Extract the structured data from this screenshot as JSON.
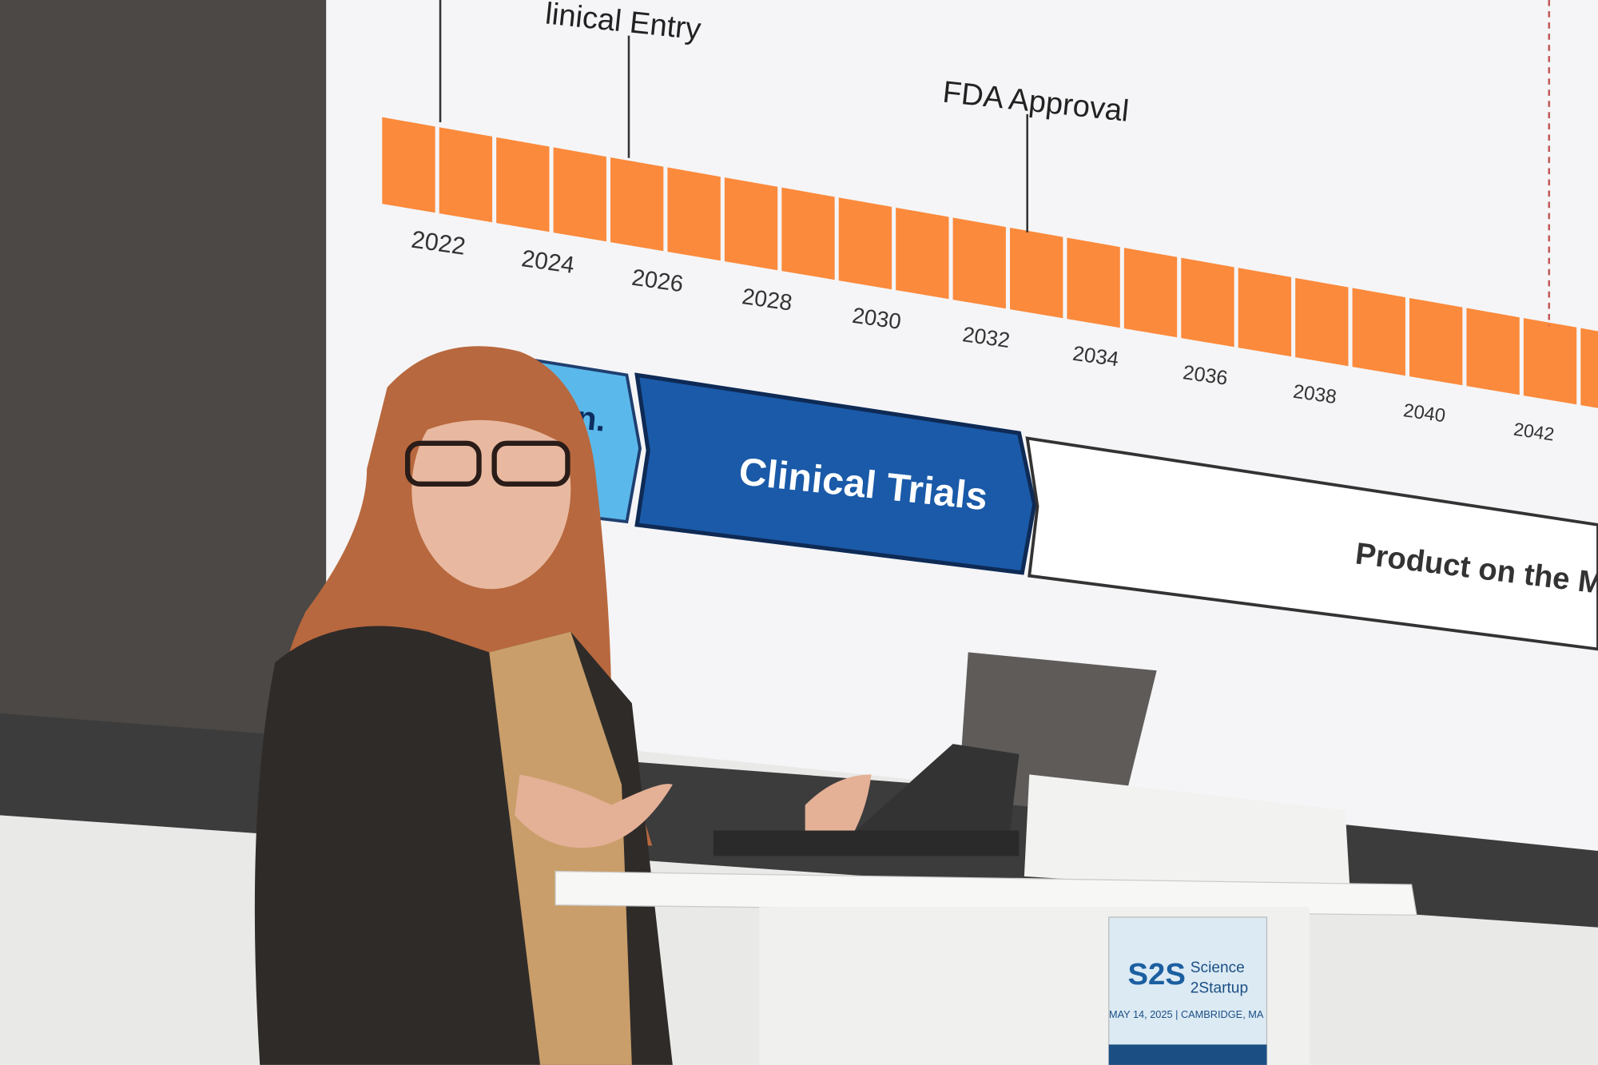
{
  "slide": {
    "milestones": [
      "linical Entry",
      "FDA Approval"
    ],
    "years": [
      2022,
      2024,
      2026,
      2028,
      2030,
      2032,
      2034,
      2036,
      2038,
      2040,
      2042
    ],
    "phases": [
      "lin.",
      "Clinical Trials",
      "Product on the Marke"
    ]
  },
  "podium_sign": {
    "logo": "S2S",
    "name": [
      "Science",
      "2Startup"
    ],
    "date_location": "MAY 14, 2025 | CAMBRIDGE, MA"
  }
}
